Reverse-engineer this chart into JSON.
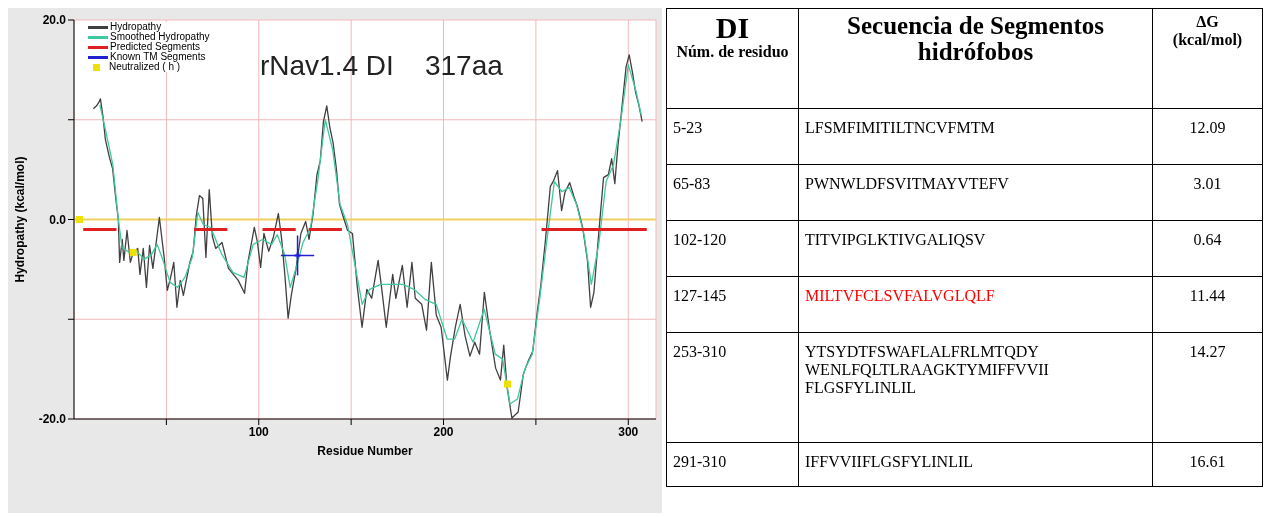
{
  "chart_data": [
    {
      "type": "line",
      "title": "rNav1.4 DI    317aa",
      "xlabel": "Residue Number",
      "ylabel": "Hydropathy (kcal/mol)",
      "xlim": [
        0,
        315
      ],
      "xticks": [
        {
          "value": 50,
          "label": null
        },
        100,
        {
          "value": 150,
          "label": null
        },
        200,
        {
          "value": 250,
          "label": null
        },
        300
      ],
      "ylim": [
        -20,
        20
      ],
      "yticks": [
        {
          "value": -20,
          "label": "-20.0"
        },
        {
          "value": -10,
          "label": null
        },
        {
          "value": 0,
          "label": "0.0"
        },
        {
          "value": 10,
          "label": null
        },
        {
          "value": 20,
          "label": "20.0"
        }
      ],
      "grid": true,
      "legend": "top left",
      "marker": "none",
      "ref_lines": [
        {
          "axis": "y",
          "value": 0,
          "color": "#f0d060"
        }
      ],
      "series": [
        {
          "name": "Hydropathy",
          "color": "#404040",
          "x": [
            10.5,
            12.2,
            13.6,
            14.3,
            15.7,
            17,
            19.2,
            20.9,
            22.6,
            24,
            24.7,
            26.1,
            27,
            28.7,
            30.5,
            32.2,
            34.5,
            35.7,
            37.5,
            39.2,
            40.9,
            42.7,
            46.2,
            48.8,
            50.5,
            52.3,
            54,
            55.7,
            57.5,
            59.2,
            62.7,
            64.5,
            66.2,
            67.9,
            69.7,
            71.4,
            73.2,
            74.9,
            76.7,
            80.1,
            83.6,
            88.9,
            92.3,
            94.1,
            97.6,
            99.3,
            101,
            102.8,
            105.4,
            108,
            110.6,
            112.4,
            114.1,
            115.9,
            117.6,
            120.2,
            122.8,
            125.4,
            127.2,
            129.3,
            131.5,
            133.3,
            135,
            136.8,
            138.5,
            140.2,
            142,
            143.7,
            145.5,
            148.1,
            150.7,
            153.3,
            155.9,
            158.5,
            161.1,
            164.6,
            166.4,
            169,
            172.5,
            174.2,
            177.7,
            180.3,
            182.9,
            184.7,
            188.2,
            190.8,
            193.4,
            196.1,
            198.7,
            202.1,
            203.8,
            206.4,
            209,
            211.7,
            214.3,
            216.9,
            219.5,
            222.1,
            224.7,
            228.2,
            230.8,
            232.6,
            234.3,
            237,
            240.4,
            243.2,
            245.6,
            248.3,
            250.9,
            252.6,
            255.2,
            257.8,
            259.6,
            261.7,
            263.9,
            265.7,
            268.3,
            270.4,
            272.6,
            275.3,
            277.9,
            279.6,
            281.4,
            284,
            286.6,
            289.2,
            291,
            292.7,
            294.4,
            296.2,
            298.8,
            300.5,
            302.3,
            304,
            305.7,
            307.5
          ],
          "values": [
            11.1,
            11.4,
            11.8,
            12.1,
            10.3,
            8.0,
            6.2,
            5.1,
            2.1,
            0,
            -4.3,
            -2.0,
            -4.1,
            -1.1,
            -4.3,
            -3.2,
            -2.9,
            -5.5,
            -2.9,
            -6.8,
            -2.6,
            -4.9,
            0.2,
            -3.8,
            -7.1,
            -5.8,
            -4.3,
            -8.8,
            -6.1,
            -7.6,
            -4.3,
            -3.2,
            0.4,
            2.4,
            2.1,
            -3.8,
            3.0,
            -1.7,
            -2.9,
            -2.3,
            -4.9,
            -6.1,
            -7.4,
            -4.3,
            -0.8,
            -2.3,
            -4.8,
            -1.4,
            -3.2,
            -1.7,
            0.6,
            -2.0,
            -5.5,
            -9.9,
            -7.6,
            -4.9,
            -1.4,
            -0.2,
            -2.0,
            0.4,
            4.5,
            5.9,
            9.8,
            11.4,
            9.2,
            7.7,
            5.1,
            1.5,
            0.4,
            -1.1,
            -1.4,
            -6.7,
            -10.8,
            -7.0,
            -7.9,
            -4.1,
            -6.7,
            -10.8,
            -5.5,
            -7.9,
            -4.6,
            -8.8,
            -4.3,
            -7.9,
            -8.5,
            -11.1,
            -4.3,
            -9.6,
            -10.8,
            -16.1,
            -13.7,
            -10.8,
            -8.5,
            -11.7,
            -13.7,
            -12.3,
            -13.5,
            -7.3,
            -10.8,
            -14.9,
            -16.1,
            -12.6,
            -16.7,
            -19.9,
            -19.3,
            -15.5,
            -14.3,
            -13.2,
            -9.0,
            -6.7,
            -2.0,
            3.3,
            3.9,
            4.9,
            0.9,
            2.7,
            3.7,
            2.4,
            1.2,
            -0.8,
            -4.1,
            -8.8,
            -7.3,
            -1.4,
            4.2,
            4.5,
            6.1,
            3.6,
            7.4,
            10.6,
            15.3,
            16.5,
            14.7,
            12.7,
            11.5,
            9.8
          ]
        },
        {
          "name": "Smoothed Hydropathy",
          "color": "#40c8a0",
          "x": [
            14,
            17,
            21,
            24,
            26,
            30,
            34,
            38,
            42,
            45,
            48,
            52,
            56,
            60,
            64,
            67,
            70,
            74,
            80,
            86,
            92,
            97,
            102,
            107,
            110,
            114,
            117,
            120,
            124,
            128,
            132,
            136,
            140,
            144,
            148,
            152,
            156,
            160,
            166,
            172,
            178,
            184,
            190,
            196,
            202,
            206,
            210,
            216,
            222,
            228,
            232,
            236,
            240,
            244,
            248,
            252,
            256,
            260,
            264,
            268,
            272,
            276,
            280,
            284,
            288,
            292,
            296,
            300,
            304,
            307
          ],
          "values": [
            11.5,
            9,
            5.5,
            0,
            -2.8,
            -3.3,
            -3.2,
            -4,
            -3.5,
            -2.5,
            -4,
            -6.3,
            -6.8,
            -5.8,
            -3.8,
            0.7,
            -0.5,
            -0.8,
            -3.5,
            -5.3,
            -5.8,
            -2.5,
            -2.0,
            -2.5,
            -1.5,
            -3.5,
            -6.8,
            -5,
            -2.3,
            -0.8,
            4,
            10,
            7,
            1.5,
            -0.5,
            -4.5,
            -8.5,
            -7,
            -6.5,
            -6.5,
            -6.5,
            -7,
            -8,
            -8.5,
            -12,
            -12,
            -10,
            -12.3,
            -9,
            -13.5,
            -14,
            -18.5,
            -18,
            -15,
            -13.5,
            -8,
            -2,
            3.8,
            2.8,
            3.2,
            1.5,
            -1.5,
            -6.5,
            -2.5,
            3.8,
            5.5,
            10,
            15.5,
            13,
            10.5
          ]
        },
        {
          "name": "Predicted Segments",
          "color": "#e02020",
          "x": [
            5,
            23,
            24,
            65,
            83,
            84,
            102,
            120,
            121,
            127,
            145,
            146,
            253,
            310
          ],
          "values": [
            -1,
            -1,
            null,
            -1,
            -1,
            null,
            -1,
            -1,
            null,
            -1,
            -1,
            null,
            -1,
            -1
          ]
        },
        {
          "name": "Known TM Segments",
          "type": "scatter",
          "marker": "cross",
          "color": "#2020d0",
          "x": [
            121
          ],
          "values": [
            -3.6
          ],
          "errors": [
            2
          ],
          "xerrors": [
            9
          ]
        },
        {
          "name": "Neutralized ( h )",
          "type": "scatter",
          "marker": "square",
          "color": "#f0e000",
          "x": [
            3,
            32,
            234.6
          ],
          "values": [
            0,
            -3.3,
            -16.5
          ]
        }
      ]
    },
    {
      "type": "other",
      "title": "DI",
      "subtitle": "Núm. de residuo",
      "xlabel": "Secuencia de Segmentos hidrófobos",
      "ylabel": "ΔG (kcal/mol)",
      "categories": [
        "5-23",
        "65-83",
        "102-120",
        "127-145",
        "253-310",
        "291-310"
      ],
      "annotations": [
        "LFSMFIMITILTNCVFMTM",
        "PWNWLDFSVITMAYVTEFV",
        "TITVIPGLKTIVGALIQSV",
        "MILTVFCLSVFALVGLQLF",
        "YTSYDTFSWAFLALFRLMTQDYWENLFQLTLRAAGKTYMIFFVVIIFLGSFYLINLIL",
        "IFFVVIIFLGSFYLINLIL"
      ],
      "colors": [
        "#000000",
        "#000000",
        "#000000",
        "#ff0000",
        "#000000",
        "#000000"
      ],
      "values": [
        12.09,
        3.01,
        0.64,
        11.44,
        14.27,
        16.61
      ],
      "data_labels": true
    }
  ]
}
